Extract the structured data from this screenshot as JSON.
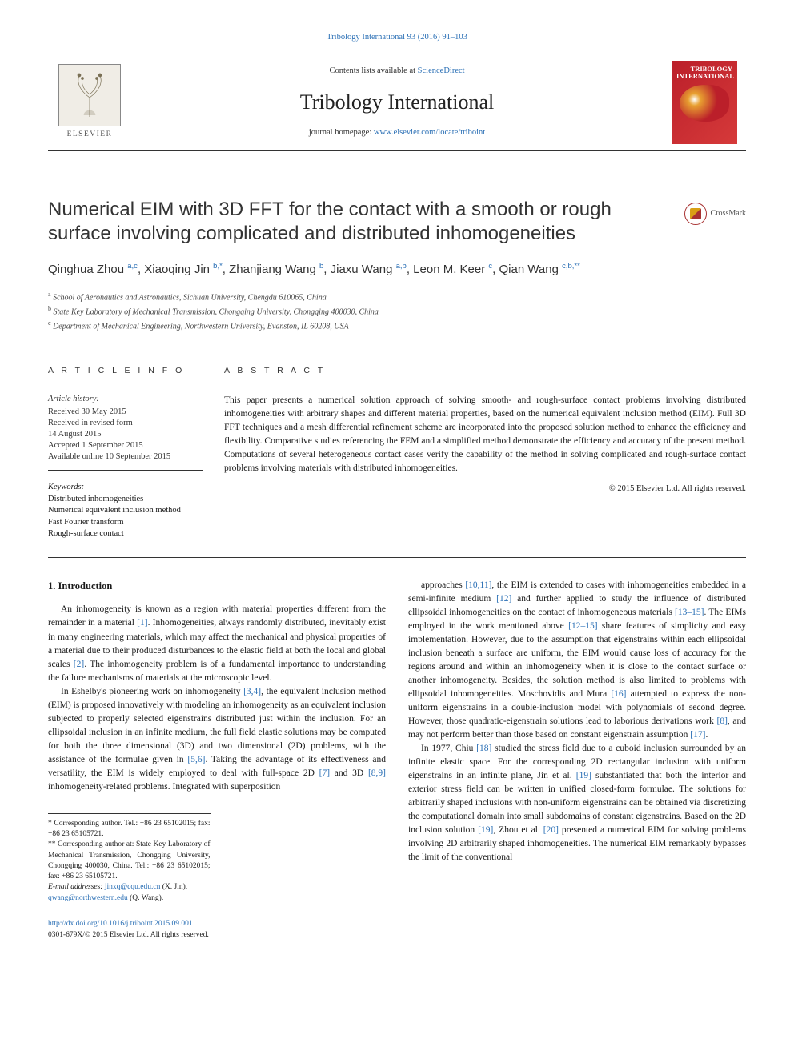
{
  "page": {
    "top_link": "Tribology International 93 (2016) 91–103",
    "contents_text_pre": "Contents lists available at ",
    "contents_link": "ScienceDirect",
    "journal_name": "Tribology International",
    "homepage_pre": "journal homepage: ",
    "homepage_url": "www.elsevier.com/locate/triboint",
    "elsevier_label": "ELSEVIER",
    "journal_cover_label": "TRIBOLOGY INTERNATIONAL",
    "crossmark": "CrossMark"
  },
  "article": {
    "title": "Numerical EIM with 3D FFT for the contact with a smooth or rough surface involving complicated and distributed inhomogeneities",
    "authors_html": "Qinghua Zhou <sup>a,c</sup>, Xiaoqing Jin <sup>b,*</sup>, Zhanjiang Wang <sup>b</sup>, Jiaxu Wang <sup>a,b</sup>, Leon M. Keer <sup>c</sup>, Qian Wang <sup>c,b,**</sup>",
    "affiliations": [
      {
        "sup": "a",
        "text": "School of Aeronautics and Astronautics, Sichuan University, Chengdu 610065, China"
      },
      {
        "sup": "b",
        "text": "State Key Laboratory of Mechanical Transmission, Chongqing University, Chongqing 400030, China"
      },
      {
        "sup": "c",
        "text": "Department of Mechanical Engineering, Northwestern University, Evanston, IL 60208, USA"
      }
    ]
  },
  "info": {
    "heading": "A R T I C L E   I N F O",
    "history_label": "Article history:",
    "history": [
      "Received 30 May 2015",
      "Received in revised form",
      "14 August 2015",
      "Accepted 1 September 2015",
      "Available online 10 September 2015"
    ],
    "keywords_label": "Keywords:",
    "keywords": [
      "Distributed inhomogeneities",
      "Numerical equivalent inclusion method",
      "Fast Fourier transform",
      "Rough-surface contact"
    ]
  },
  "abstract": {
    "heading": "A B S T R A C T",
    "text": "This paper presents a numerical solution approach of solving smooth- and rough-surface contact problems involving distributed inhomogeneities with arbitrary shapes and different material properties, based on the numerical equivalent inclusion method (EIM). Full 3D FFT techniques and a mesh differential refinement scheme are incorporated into the proposed solution method to enhance the efficiency and flexibility. Comparative studies referencing the FEM and a simplified method demonstrate the efficiency and accuracy of the present method. Computations of several heterogeneous contact cases verify the capability of the method in solving complicated and rough-surface contact problems involving materials with distributed inhomogeneities.",
    "copyright": "© 2015 Elsevier Ltd. All rights reserved."
  },
  "body": {
    "section_heading": "1.  Introduction",
    "col1": [
      "An inhomogeneity is known as a region with material properties different from the remainder in a material [1]. Inhomogeneities, always randomly distributed, inevitably exist in many engineering materials, which may affect the mechanical and physical properties of a material due to their produced disturbances to the elastic field at both the local and global scales [2]. The inhomogeneity problem is of a fundamental importance to understanding the failure mechanisms of materials at the microscopic level.",
      "In Eshelby's pioneering work on inhomogeneity [3,4], the equivalent inclusion method (EIM) is proposed innovatively with modeling an inhomogeneity as an equivalent inclusion subjected to properly selected eigenstrains distributed just within the inclusion. For an ellipsoidal inclusion in an infinite medium, the full field elastic solutions may be computed for both the three dimensional (3D) and two dimensional (2D) problems, with the assistance of the formulae given in [5,6]. Taking the advantage of its effectiveness and versatility, the EIM is widely employed to deal with full-space 2D [7] and 3D [8,9] inhomogeneity-related problems. Integrated with superposition"
    ],
    "col2": [
      "approaches [10,11], the EIM is extended to cases with inhomogeneities embedded in a semi-infinite medium [12] and further applied to study the influence of distributed ellipsoidal inhomogeneities on the contact of inhomogeneous materials [13–15]. The EIMs employed in the work mentioned above [12–15] share features of simplicity and easy implementation. However, due to the assumption that eigenstrains within each ellipsoidal inclusion beneath a surface are uniform, the EIM would cause loss of accuracy for the regions around and within an inhomogeneity when it is close to the contact surface or another inhomogeneity. Besides, the solution method is also limited to problems with ellipsoidal inhomogeneities. Moschovidis and Mura [16] attempted to express the non-uniform eigenstrains in a double-inclusion model with polynomials of second degree. However, those quadratic-eigenstrain solutions lead to laborious derivations work [8], and may not perform better than those based on constant eigenstrain assumption [17].",
      "In 1977, Chiu [18] studied the stress field due to a cuboid inclusion surrounded by an infinite elastic space. For the corresponding 2D rectangular inclusion with uniform eigenstrains in an infinite plane, Jin et al. [19] substantiated that both the interior and exterior stress field can be written in unified closed-form formulae. The solutions for arbitrarily shaped inclusions with non-uniform eigenstrains can be obtained via discretizing the computational domain into small subdomains of constant eigenstrains. Based on the 2D inclusion solution [19], Zhou et al. [20] presented a numerical EIM for solving problems involving 2D arbitrarily shaped inhomogeneities. The numerical EIM remarkably bypasses the limit of the conventional"
    ]
  },
  "footnotes": {
    "c1": "* Corresponding author. Tel.: +86 23 65102015; fax: +86 23 65105721.",
    "c2": "** Corresponding author at: State Key Laboratory of Mechanical Transmission, Chongqing University, Chongqing 400030, China. Tel.: +86 23 65102015; fax: +86 23 65105721.",
    "email_label": "E-mail addresses: ",
    "email1": "jinxq@cqu.edu.cn",
    "email1_post": " (X. Jin),",
    "email2": "qwang@northwestern.edu",
    "email2_post": " (Q. Wang)."
  },
  "footer": {
    "doi": "http://dx.doi.org/10.1016/j.triboint.2015.09.001",
    "issn": "0301-679X/© 2015 Elsevier Ltd. All rights reserved."
  },
  "colors": {
    "link": "#2a6fb5",
    "journal_red": "#bb1f2a",
    "text": "#1a1a1a",
    "rule": "#333333"
  }
}
